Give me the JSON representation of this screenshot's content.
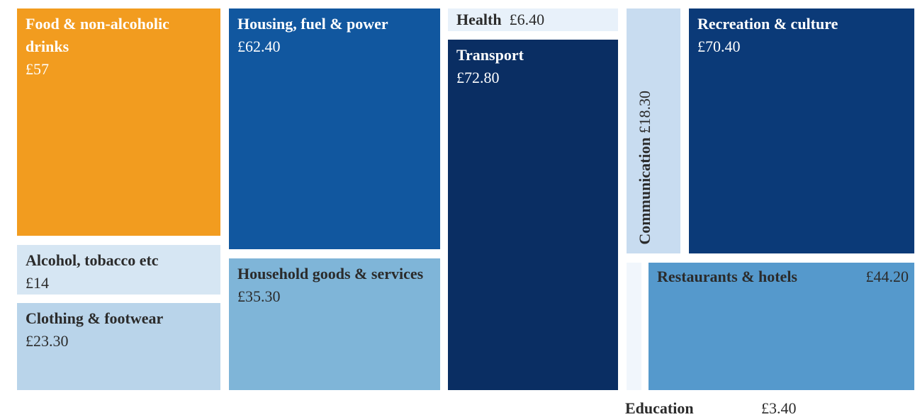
{
  "chart_data": {
    "type": "treemap",
    "categories": [
      "Food & non-alcoholic drinks",
      "Alcohol, tobacco etc",
      "Clothing & footwear",
      "Housing, fuel & power",
      "Household goods & services",
      "Health",
      "Transport",
      "Communication",
      "Recreation & culture",
      "Education",
      "Restaurants & hotels"
    ],
    "values": [
      57,
      14,
      23.3,
      62.4,
      35.3,
      6.4,
      72.8,
      18.3,
      70.4,
      3.4,
      44.2
    ],
    "value_labels": [
      "£57",
      "£14",
      "£23.30",
      "£62.40",
      "£35.30",
      "£6.40",
      "£72.80",
      "£18.30",
      "£70.40",
      "£3.40",
      "£44.20"
    ],
    "colors": [
      "#f29c1f",
      "#d6e6f3",
      "#b9d4ea",
      "#11579f",
      "#7fb5d8",
      "#e8f1fa",
      "#0a2e63",
      "#c8dcf0",
      "#0b3a78",
      "#f1f6fc",
      "#5599cc"
    ]
  }
}
